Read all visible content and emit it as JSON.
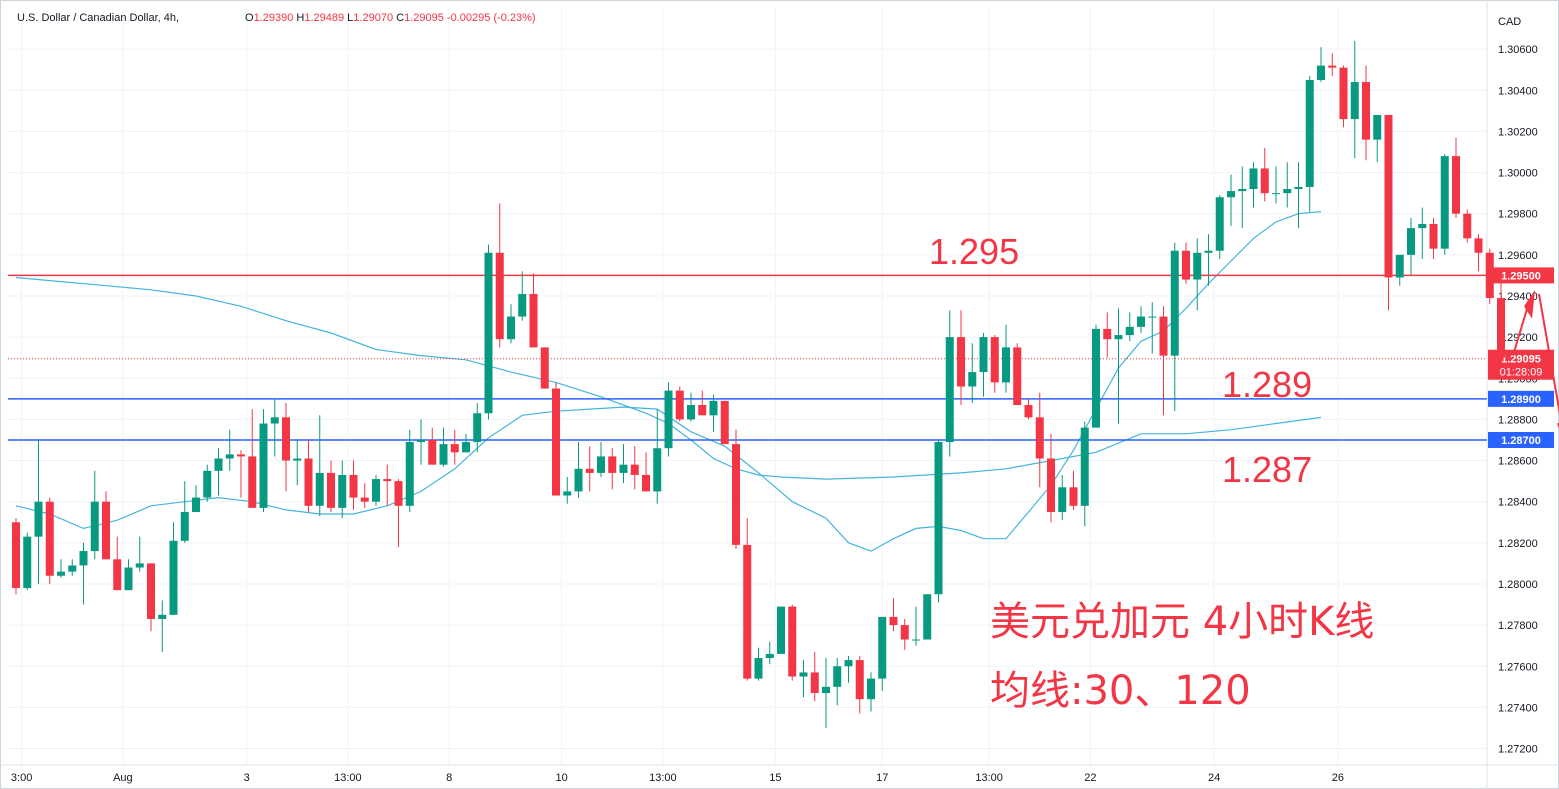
{
  "header": {
    "symbol": "U.S. Dollar / Canadian Dollar, 4h, ",
    "open_label": "O",
    "open": "1.29390",
    "high_label": "H",
    "high": "1.29489",
    "low_label": "L",
    "low": "1.29070",
    "close_label": "C",
    "close": "1.29095",
    "change": "-0.00295 (-0.23%)"
  },
  "chart_data": {
    "type": "candlestick",
    "currency": "CAD",
    "ylim": [
      1.2712,
      1.308
    ],
    "y_ticks": [
      "1.30600",
      "1.30400",
      "1.30200",
      "1.30000",
      "1.29800",
      "1.29600",
      "1.29400",
      "1.29200",
      "1.29000",
      "1.28800",
      "1.28600",
      "1.28400",
      "1.28200",
      "1.28000",
      "1.27800",
      "1.27600",
      "1.27400",
      "1.27200"
    ],
    "x_ticks": [
      {
        "label": "3:00",
        "i": 0.5
      },
      {
        "label": "Aug",
        "i": 9.5
      },
      {
        "label": "3",
        "i": 20.5
      },
      {
        "label": "13:00",
        "i": 29.5
      },
      {
        "label": "8",
        "i": 38.5
      },
      {
        "label": "10",
        "i": 48.5
      },
      {
        "label": "13:00",
        "i": 57.5
      },
      {
        "label": "15",
        "i": 67.5
      },
      {
        "label": "17",
        "i": 77
      },
      {
        "label": "13:00",
        "i": 86.5
      },
      {
        "label": "22",
        "i": 95.5
      },
      {
        "label": "24",
        "i": 106.5
      },
      {
        "label": "26",
        "i": 117.5
      }
    ],
    "candles": [
      [
        1.283,
        1.2832,
        1.2795,
        1.2798
      ],
      [
        1.2798,
        1.2825,
        1.2797,
        1.2823
      ],
      [
        1.2823,
        1.287,
        1.28,
        1.284
      ],
      [
        1.284,
        1.2842,
        1.28,
        1.2804
      ],
      [
        1.2804,
        1.2812,
        1.2803,
        1.2806
      ],
      [
        1.2806,
        1.2812,
        1.2804,
        1.2809
      ],
      [
        1.2809,
        1.282,
        1.279,
        1.2816
      ],
      [
        1.2816,
        1.2855,
        1.2812,
        1.284
      ],
      [
        1.284,
        1.2845,
        1.2812,
        1.2812
      ],
      [
        1.2812,
        1.2823,
        1.2797,
        1.2797
      ],
      [
        1.2797,
        1.2812,
        1.2797,
        1.2808
      ],
      [
        1.2808,
        1.2823,
        1.2806,
        1.281
      ],
      [
        1.281,
        1.281,
        1.2777,
        1.2783
      ],
      [
        1.2783,
        1.2792,
        1.2767,
        1.2785
      ],
      [
        1.2785,
        1.283,
        1.2785,
        1.2821
      ],
      [
        1.2821,
        1.285,
        1.282,
        1.2835
      ],
      [
        1.2835,
        1.2848,
        1.2835,
        1.2842
      ],
      [
        1.2842,
        1.2858,
        1.284,
        1.2855
      ],
      [
        1.2855,
        1.2866,
        1.2843,
        1.2861
      ],
      [
        1.2861,
        1.2875,
        1.2855,
        1.2863
      ],
      [
        1.2863,
        1.2865,
        1.2842,
        1.2862
      ],
      [
        1.2862,
        1.2885,
        1.2837,
        1.2837
      ],
      [
        1.2837,
        1.2885,
        1.2835,
        1.2878
      ],
      [
        1.2878,
        1.289,
        1.2862,
        1.2881
      ],
      [
        1.2881,
        1.2888,
        1.2845,
        1.286
      ],
      [
        1.286,
        1.287,
        1.2848,
        1.2861
      ],
      [
        1.2861,
        1.287,
        1.2835,
        1.2838
      ],
      [
        1.2838,
        1.2882,
        1.2833,
        1.2854
      ],
      [
        1.2854,
        1.286,
        1.2835,
        1.2837
      ],
      [
        1.2837,
        1.286,
        1.2832,
        1.2853
      ],
      [
        1.2853,
        1.286,
        1.2836,
        1.2842
      ],
      [
        1.2842,
        1.2849,
        1.2837,
        1.284
      ],
      [
        1.284,
        1.2853,
        1.2838,
        1.2851
      ],
      [
        1.2851,
        1.2858,
        1.2838,
        1.285
      ],
      [
        1.285,
        1.2851,
        1.2818,
        1.2838
      ],
      [
        1.2838,
        1.2875,
        1.2835,
        1.2869
      ],
      [
        1.2869,
        1.288,
        1.2858,
        1.287
      ],
      [
        1.287,
        1.2876,
        1.2858,
        1.2858
      ],
      [
        1.2858,
        1.2876,
        1.2857,
        1.2868
      ],
      [
        1.2868,
        1.2875,
        1.2858,
        1.2864
      ],
      [
        1.2864,
        1.2873,
        1.2864,
        1.2869
      ],
      [
        1.2869,
        1.2888,
        1.2864,
        1.2883
      ],
      [
        1.2883,
        1.2965,
        1.288,
        1.2961
      ],
      [
        1.2961,
        1.2985,
        1.2915,
        1.2919
      ],
      [
        1.2919,
        1.2936,
        1.2917,
        1.293
      ],
      [
        1.293,
        1.2952,
        1.2928,
        1.2941
      ],
      [
        1.2941,
        1.2951,
        1.2917,
        1.2915
      ],
      [
        1.2915,
        1.2915,
        1.2895,
        1.2895
      ],
      [
        1.2895,
        1.2898,
        1.2843,
        1.2843
      ],
      [
        1.2843,
        1.2852,
        1.2839,
        1.2845
      ],
      [
        1.2845,
        1.2869,
        1.2842,
        1.2856
      ],
      [
        1.2856,
        1.2867,
        1.2845,
        1.2854
      ],
      [
        1.2854,
        1.2869,
        1.2852,
        1.2862
      ],
      [
        1.2862,
        1.2866,
        1.2846,
        1.2854
      ],
      [
        1.2854,
        1.2868,
        1.2849,
        1.2858
      ],
      [
        1.2858,
        1.2867,
        1.2846,
        1.2853
      ],
      [
        1.2853,
        1.2864,
        1.2845,
        1.2845
      ],
      [
        1.2845,
        1.2885,
        1.2839,
        1.2866
      ],
      [
        1.2866,
        1.2898,
        1.2862,
        1.2894
      ],
      [
        1.2894,
        1.2896,
        1.2879,
        1.288
      ],
      [
        1.288,
        1.2893,
        1.2879,
        1.2887
      ],
      [
        1.2887,
        1.2894,
        1.2883,
        1.2882
      ],
      [
        1.2882,
        1.2892,
        1.2874,
        1.2889
      ],
      [
        1.2889,
        1.2889,
        1.2868,
        1.2868
      ],
      [
        1.2868,
        1.2875,
        1.2817,
        1.2819
      ],
      [
        1.2819,
        1.2832,
        1.2753,
        1.2754
      ],
      [
        1.2754,
        1.2769,
        1.2753,
        1.2764
      ],
      [
        1.2764,
        1.2772,
        1.2761,
        1.2766
      ],
      [
        1.2766,
        1.2789,
        1.2766,
        1.2789
      ],
      [
        1.2789,
        1.279,
        1.2753,
        1.2755
      ],
      [
        1.2755,
        1.2763,
        1.2745,
        1.2757
      ],
      [
        1.2757,
        1.2767,
        1.2743,
        1.2747
      ],
      [
        1.2747,
        1.2764,
        1.273,
        1.275
      ],
      [
        1.275,
        1.2764,
        1.2741,
        1.276
      ],
      [
        1.276,
        1.2765,
        1.2752,
        1.2763
      ],
      [
        1.2763,
        1.2765,
        1.2737,
        1.2744
      ],
      [
        1.2744,
        1.2757,
        1.2738,
        1.2754
      ],
      [
        1.2754,
        1.2784,
        1.2748,
        1.2784
      ],
      [
        1.2784,
        1.2793,
        1.2777,
        1.278
      ],
      [
        1.278,
        1.2783,
        1.2768,
        1.2773
      ],
      [
        1.2773,
        1.2789,
        1.277,
        1.2773
      ],
      [
        1.2773,
        1.2795,
        1.2773,
        1.2795
      ],
      [
        1.2795,
        1.287,
        1.2791,
        1.2869
      ],
      [
        1.2869,
        1.2933,
        1.2862,
        1.292
      ],
      [
        1.292,
        1.2933,
        1.2887,
        1.2896
      ],
      [
        1.2896,
        1.2917,
        1.2888,
        1.2903
      ],
      [
        1.2903,
        1.2922,
        1.2891,
        1.292
      ],
      [
        1.292,
        1.2921,
        1.2893,
        1.2898
      ],
      [
        1.2898,
        1.2926,
        1.2893,
        1.2915
      ],
      [
        1.2915,
        1.2917,
        1.2888,
        1.2887
      ],
      [
        1.2887,
        1.289,
        1.288,
        1.2881
      ],
      [
        1.2881,
        1.2893,
        1.2847,
        1.2861
      ],
      [
        1.2861,
        1.2873,
        1.283,
        1.2835
      ],
      [
        1.2835,
        1.2853,
        1.2831,
        1.2847
      ],
      [
        1.2847,
        1.2855,
        1.2836,
        1.2838
      ],
      [
        1.2838,
        1.2879,
        1.2828,
        1.2876
      ],
      [
        1.2876,
        1.2926,
        1.2876,
        1.2924
      ],
      [
        1.2924,
        1.2932,
        1.291,
        1.2919
      ],
      [
        1.2919,
        1.2934,
        1.2878,
        1.2921
      ],
      [
        1.2921,
        1.2932,
        1.2918,
        1.2925
      ],
      [
        1.2925,
        1.2935,
        1.2922,
        1.293
      ],
      [
        1.293,
        1.2937,
        1.2912,
        1.293
      ],
      [
        1.293,
        1.2935,
        1.2882,
        1.2911
      ],
      [
        1.2911,
        1.2966,
        1.2884,
        1.2962
      ],
      [
        1.2962,
        1.2966,
        1.2946,
        1.2948
      ],
      [
        1.2948,
        1.2968,
        1.2933,
        1.2961
      ],
      [
        1.2961,
        1.297,
        1.2945,
        1.2962
      ],
      [
        1.2962,
        1.2989,
        1.2958,
        1.2988
      ],
      [
        1.2988,
        1.2999,
        1.2974,
        1.2991
      ],
      [
        1.2991,
        1.3003,
        1.2973,
        1.2992
      ],
      [
        1.2992,
        1.3005,
        1.2983,
        1.3002
      ],
      [
        1.3002,
        1.3012,
        1.2986,
        1.299
      ],
      [
        1.299,
        1.3003,
        1.2985,
        1.299
      ],
      [
        1.299,
        1.3005,
        1.2983,
        1.2992
      ],
      [
        1.2992,
        1.3005,
        1.2973,
        1.2993
      ],
      [
        1.2993,
        1.3047,
        1.2981,
        1.3045
      ],
      [
        1.3045,
        1.3061,
        1.3044,
        1.3052
      ],
      [
        1.3052,
        1.3058,
        1.3047,
        1.3051
      ],
      [
        1.3051,
        1.3052,
        1.3022,
        1.3026
      ],
      [
        1.3026,
        1.3064,
        1.3007,
        1.3044
      ],
      [
        1.3044,
        1.3052,
        1.3006,
        1.3016
      ],
      [
        1.3016,
        1.3027,
        1.3005,
        1.3028
      ],
      [
        1.3028,
        1.3028,
        1.2933,
        1.2949
      ],
      [
        1.2949,
        1.296,
        1.2945,
        1.296
      ],
      [
        1.296,
        1.2978,
        1.295,
        1.2973
      ],
      [
        1.2973,
        1.2983,
        1.2958,
        1.2975
      ],
      [
        1.2975,
        1.2978,
        1.2958,
        1.2963
      ],
      [
        1.2963,
        1.3009,
        1.296,
        1.3008
      ],
      [
        1.3008,
        1.3017,
        1.2978,
        1.298
      ],
      [
        1.298,
        1.2982,
        1.2966,
        1.2968
      ],
      [
        1.2968,
        1.297,
        1.2952,
        1.2961
      ],
      [
        1.2961,
        1.2963,
        1.2936,
        1.2939
      ],
      [
        1.2939,
        1.2949,
        1.2907,
        1.291
      ]
    ],
    "ma30": [
      [
        0,
        1.2838
      ],
      [
        3,
        1.2834
      ],
      [
        6,
        1.2827
      ],
      [
        9,
        1.2831
      ],
      [
        12,
        1.2838
      ],
      [
        15,
        1.284
      ],
      [
        18,
        1.2842
      ],
      [
        21,
        1.284
      ],
      [
        24,
        1.2836
      ],
      [
        27,
        1.2834
      ],
      [
        30,
        1.2834
      ],
      [
        33,
        1.2838
      ],
      [
        36,
        1.2845
      ],
      [
        39,
        1.2856
      ],
      [
        42,
        1.2871
      ],
      [
        45,
        1.2882
      ],
      [
        48,
        1.2884
      ],
      [
        51,
        1.2885
      ],
      [
        54,
        1.2886
      ],
      [
        57,
        1.2885
      ],
      [
        60,
        1.2874
      ],
      [
        63,
        1.2867
      ],
      [
        66,
        1.2854
      ],
      [
        69,
        1.284
      ],
      [
        72,
        1.2832
      ],
      [
        74,
        1.282
      ],
      [
        76,
        1.2816
      ],
      [
        78,
        1.2822
      ],
      [
        80,
        1.2827
      ],
      [
        82,
        1.2828
      ],
      [
        84,
        1.2826
      ],
      [
        86,
        1.2822
      ],
      [
        88,
        1.2822
      ],
      [
        90,
        1.2835
      ],
      [
        92,
        1.2848
      ],
      [
        94,
        1.2865
      ],
      [
        96,
        1.2885
      ],
      [
        98,
        1.2905
      ],
      [
        100,
        1.2918
      ],
      [
        102,
        1.2923
      ],
      [
        104,
        1.2934
      ],
      [
        106,
        1.2946
      ],
      [
        108,
        1.2957
      ],
      [
        110,
        1.2968
      ],
      [
        112,
        1.2976
      ],
      [
        114,
        1.298
      ],
      [
        116,
        1.2981
      ]
    ],
    "ma120": [
      [
        0,
        1.2949
      ],
      [
        4,
        1.2947
      ],
      [
        8,
        1.2945
      ],
      [
        12,
        1.2943
      ],
      [
        16,
        1.294
      ],
      [
        20,
        1.2935
      ],
      [
        24,
        1.2928
      ],
      [
        28,
        1.2922
      ],
      [
        32,
        1.2914
      ],
      [
        36,
        1.2911
      ],
      [
        40,
        1.2909
      ],
      [
        44,
        1.2903
      ],
      [
        48,
        1.2898
      ],
      [
        52,
        1.2891
      ],
      [
        56,
        1.2883
      ],
      [
        58,
        1.2878
      ],
      [
        60,
        1.287
      ],
      [
        62,
        1.2861
      ],
      [
        64,
        1.2856
      ],
      [
        66,
        1.2853
      ],
      [
        68,
        1.2852
      ],
      [
        72,
        1.2851
      ],
      [
        78,
        1.2852
      ],
      [
        84,
        1.2854
      ],
      [
        88,
        1.2856
      ],
      [
        92,
        1.286
      ],
      [
        96,
        1.2864
      ],
      [
        100,
        1.2873
      ],
      [
        104,
        1.2873
      ],
      [
        108,
        1.2875
      ],
      [
        112,
        1.2878
      ],
      [
        116,
        1.2881
      ]
    ],
    "levels": [
      {
        "value": 1.295,
        "label": "1.29500",
        "color": "#f23645"
      },
      {
        "value": 1.289,
        "label": "1.28900",
        "color": "#2962ff"
      },
      {
        "value": 1.287,
        "label": "1.28700",
        "color": "#2962ff"
      }
    ],
    "current_price": {
      "value": 1.29095,
      "label": "1.29095",
      "countdown": "01:28:09"
    },
    "annotations": {
      "level_295": "1.295",
      "level_289": "1.289",
      "level_287": "1.287",
      "caption_1": "美元兑加元 4小时K线",
      "caption_2": "均线:30、120"
    },
    "colors": {
      "up": "#089981",
      "down": "#f23645",
      "ma": "#45b5dc",
      "grid": "#f0f3fa",
      "text": "#131722"
    }
  }
}
